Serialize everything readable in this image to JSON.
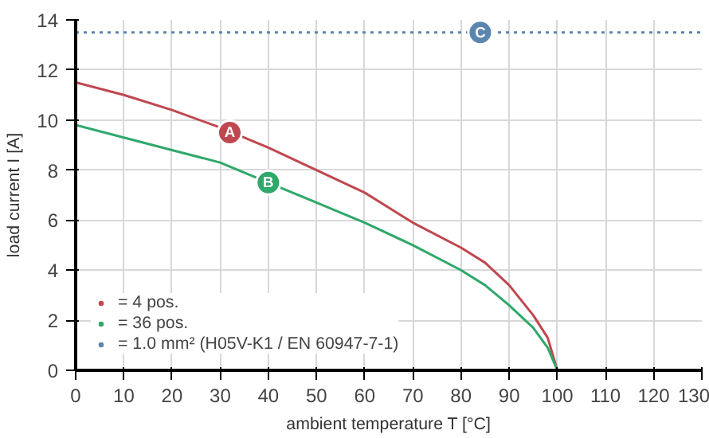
{
  "chart_data": {
    "type": "line",
    "xlabel": "ambient temperature T [°C]",
    "ylabel": "load current I [A]",
    "x": [
      0,
      10,
      20,
      30,
      40,
      50,
      60,
      70,
      80,
      85,
      90,
      95,
      98,
      100
    ],
    "series": [
      {
        "name": "= 4 pos.",
        "color": "#c0474f",
        "values": [
          11.5,
          11.0,
          10.4,
          9.7,
          8.9,
          8.0,
          7.1,
          5.9,
          4.9,
          4.3,
          3.4,
          2.2,
          1.3,
          0
        ]
      },
      {
        "name": "= 36 pos.",
        "color": "#2fa86a",
        "values": [
          9.8,
          9.3,
          8.8,
          8.3,
          7.5,
          6.7,
          5.9,
          5.0,
          4.0,
          3.4,
          2.6,
          1.7,
          0.9,
          0
        ]
      },
      {
        "name": "= 1.0 mm² (H05V-K1 / EN 60947-7-1)",
        "color": "#5b86b0",
        "x": [
          0,
          130
        ],
        "values": [
          13.5,
          13.5
        ],
        "line_style": "dotted"
      }
    ],
    "annotations": [
      {
        "text": "A",
        "x": 32,
        "y": 9.5
      },
      {
        "text": "B",
        "x": 40,
        "y": 7.5
      },
      {
        "text": "C",
        "x": 84,
        "y": 13.5
      }
    ],
    "xlim": [
      0,
      130
    ],
    "ylim": [
      0,
      14
    ],
    "xticks": [
      0,
      10,
      20,
      30,
      40,
      50,
      60,
      70,
      80,
      90,
      100,
      110,
      120,
      130
    ],
    "yticks": [
      0,
      2,
      4,
      6,
      8,
      10,
      12,
      14
    ],
    "grid": true,
    "legend": "bottom left",
    "line_style": "solid",
    "marker": "none"
  }
}
